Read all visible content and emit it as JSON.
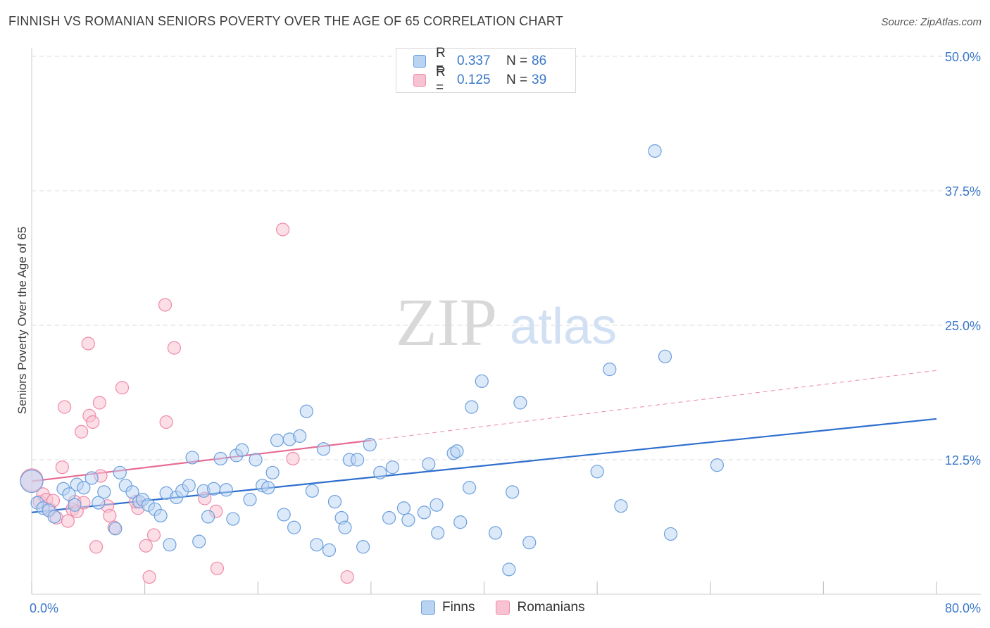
{
  "header": {
    "title": "FINNISH VS ROMANIAN SENIORS POVERTY OVER THE AGE OF 65 CORRELATION CHART",
    "source": "Source: ZipAtlas.com"
  },
  "colors": {
    "finns": "#6b9fde",
    "finns_fill": "#b9d3f3",
    "finns_line": "#2f6fce",
    "romanians": "#f08aa8",
    "romanians_fill": "#f7c2d2",
    "romanians_line": "#e86a93",
    "tick_text": "#3b78c9",
    "grid": "#dddddd"
  },
  "legend": {
    "rows": [
      {
        "r_label": "R =",
        "r_value": "0.337",
        "n_label": "N =",
        "n_value": "86"
      },
      {
        "r_label": "R =",
        "r_value": "0.125",
        "n_label": "N =",
        "n_value": "39"
      }
    ]
  },
  "bottom_legend": {
    "finns": "Finns",
    "romanians": "Romanians"
  },
  "watermark": {
    "zip": "ZIP",
    "atlas": "atlas"
  },
  "chart_data": {
    "type": "scatter",
    "title": "FINNISH VS ROMANIAN SENIORS POVERTY OVER THE AGE OF 65 CORRELATION CHART",
    "xlabel": "",
    "ylabel": "Seniors Poverty Over the Age of 65",
    "xlim": [
      0,
      80
    ],
    "ylim": [
      0,
      50
    ],
    "x_tick_labels": [
      "0.0%",
      "80.0%"
    ],
    "y_ticks": [
      12.5,
      25.0,
      37.5,
      50.0
    ],
    "y_tick_labels": [
      "12.5%",
      "25.0%",
      "37.5%",
      "50.0%"
    ],
    "grid": "horizontal dashed",
    "legend_position": "top-center",
    "series": [
      {
        "name": "Finns",
        "R": 0.337,
        "N": 86,
        "trend": {
          "x0": 0,
          "y0": 7.6,
          "x1": 80,
          "y1": 16.3
        },
        "points": [
          [
            0,
            10.5
          ],
          [
            0.5,
            8.5
          ],
          [
            1,
            8
          ],
          [
            1.5,
            7.8
          ],
          [
            2,
            7.2
          ],
          [
            2.8,
            9.8
          ],
          [
            3.3,
            9.3
          ],
          [
            3.8,
            8.3
          ],
          [
            4.0,
            10.2
          ],
          [
            4.6,
            9.9
          ],
          [
            5.3,
            10.8
          ],
          [
            5.9,
            8.5
          ],
          [
            6.4,
            9.5
          ],
          [
            7.4,
            6.1
          ],
          [
            7.8,
            11.3
          ],
          [
            8.3,
            10.1
          ],
          [
            8.9,
            9.5
          ],
          [
            9.5,
            8.6
          ],
          [
            9.8,
            8.8
          ],
          [
            10.3,
            8.3
          ],
          [
            10.9,
            7.9
          ],
          [
            11.4,
            7.3
          ],
          [
            11.9,
            9.4
          ],
          [
            12.2,
            4.6
          ],
          [
            12.8,
            9.0
          ],
          [
            13.3,
            9.6
          ],
          [
            13.9,
            10.1
          ],
          [
            14.2,
            12.7
          ],
          [
            14.8,
            4.9
          ],
          [
            15.2,
            9.6
          ],
          [
            15.6,
            7.2
          ],
          [
            16.1,
            9.8
          ],
          [
            16.7,
            12.6
          ],
          [
            17.2,
            9.7
          ],
          [
            17.8,
            7.0
          ],
          [
            18.1,
            12.9
          ],
          [
            18.6,
            13.4
          ],
          [
            19.3,
            8.8
          ],
          [
            19.8,
            12.5
          ],
          [
            20.4,
            10.1
          ],
          [
            20.9,
            9.9
          ],
          [
            21.3,
            11.3
          ],
          [
            21.7,
            14.3
          ],
          [
            22.3,
            7.4
          ],
          [
            22.8,
            14.4
          ],
          [
            23.2,
            6.2
          ],
          [
            23.7,
            14.7
          ],
          [
            24.3,
            17.0
          ],
          [
            24.8,
            9.6
          ],
          [
            25.2,
            4.6
          ],
          [
            25.8,
            13.5
          ],
          [
            26.3,
            4.1
          ],
          [
            26.8,
            8.6
          ],
          [
            27.4,
            7.1
          ],
          [
            27.7,
            6.2
          ],
          [
            28.1,
            12.5
          ],
          [
            28.8,
            12.5
          ],
          [
            29.3,
            4.4
          ],
          [
            29.9,
            13.9
          ],
          [
            30.8,
            11.3
          ],
          [
            31.6,
            7.1
          ],
          [
            31.9,
            11.8
          ],
          [
            32.9,
            8.0
          ],
          [
            33.3,
            6.9
          ],
          [
            34.7,
            7.6
          ],
          [
            35.1,
            12.1
          ],
          [
            35.8,
            8.3
          ],
          [
            35.9,
            5.7
          ],
          [
            37.3,
            13.1
          ],
          [
            37.6,
            13.3
          ],
          [
            37.9,
            6.7
          ],
          [
            38.7,
            9.9
          ],
          [
            38.9,
            17.4
          ],
          [
            39.8,
            19.8
          ],
          [
            41.0,
            5.7
          ],
          [
            42.2,
            2.3
          ],
          [
            43.2,
            17.8
          ],
          [
            44.0,
            4.8
          ],
          [
            50.0,
            11.4
          ],
          [
            51.1,
            20.9
          ],
          [
            52.1,
            8.2
          ],
          [
            55.1,
            41.2
          ],
          [
            56.0,
            22.1
          ],
          [
            56.5,
            5.6
          ],
          [
            60.6,
            12.0
          ],
          [
            42.5,
            9.5
          ]
        ]
      },
      {
        "name": "Romanians",
        "R": 0.125,
        "N": 39,
        "trend": {
          "x0": 0,
          "y0": 10.5,
          "x1": 30,
          "y1": 14.3
        },
        "trend_dashed": {
          "x0": 30,
          "y0": 14.3,
          "x1": 80,
          "y1": 20.8
        },
        "points": [
          [
            0,
            10.6
          ],
          [
            0.7,
            8.6
          ],
          [
            1.0,
            9.3
          ],
          [
            1.3,
            8.8
          ],
          [
            1.6,
            7.9
          ],
          [
            1.9,
            8.7
          ],
          [
            2.2,
            7.1
          ],
          [
            2.7,
            11.8
          ],
          [
            2.9,
            17.4
          ],
          [
            3.2,
            6.8
          ],
          [
            3.6,
            7.9
          ],
          [
            3.8,
            8.6
          ],
          [
            4.0,
            7.7
          ],
          [
            4.4,
            15.1
          ],
          [
            4.6,
            8.5
          ],
          [
            5.1,
            16.6
          ],
          [
            5.0,
            23.3
          ],
          [
            5.4,
            16.0
          ],
          [
            5.7,
            4.4
          ],
          [
            6.0,
            17.8
          ],
          [
            6.1,
            11.0
          ],
          [
            6.7,
            8.2
          ],
          [
            6.9,
            7.3
          ],
          [
            7.3,
            6.2
          ],
          [
            8.0,
            19.2
          ],
          [
            9.4,
            8.0
          ],
          [
            10.1,
            4.5
          ],
          [
            10.4,
            1.6
          ],
          [
            10.8,
            5.5
          ],
          [
            11.8,
            26.9
          ],
          [
            11.9,
            16.0
          ],
          [
            12.6,
            22.9
          ],
          [
            16.3,
            7.7
          ],
          [
            16.4,
            2.4
          ],
          [
            22.2,
            33.9
          ],
          [
            23.1,
            12.6
          ],
          [
            27.9,
            1.6
          ],
          [
            15.3,
            8.9
          ],
          [
            9.2,
            8.6
          ]
        ]
      }
    ]
  }
}
